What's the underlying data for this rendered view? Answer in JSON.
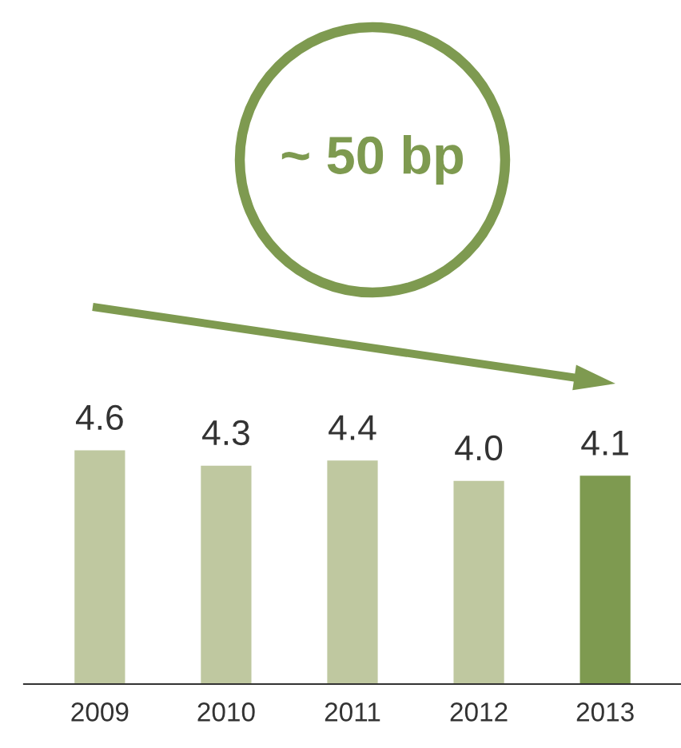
{
  "chart_data": {
    "type": "bar",
    "categories": [
      "2009",
      "2010",
      "2011",
      "2012",
      "2013"
    ],
    "values": [
      4.6,
      4.3,
      4.4,
      4.0,
      4.1
    ],
    "colors": [
      "#bfc8a0",
      "#bfc8a0",
      "#bfc8a0",
      "#bfc8a0",
      "#7e9a50"
    ],
    "value_labels": [
      "4.6",
      "4.3",
      "4.4",
      "4.0",
      "4.1"
    ],
    "annotations": [
      "~ 50 bp"
    ]
  }
}
